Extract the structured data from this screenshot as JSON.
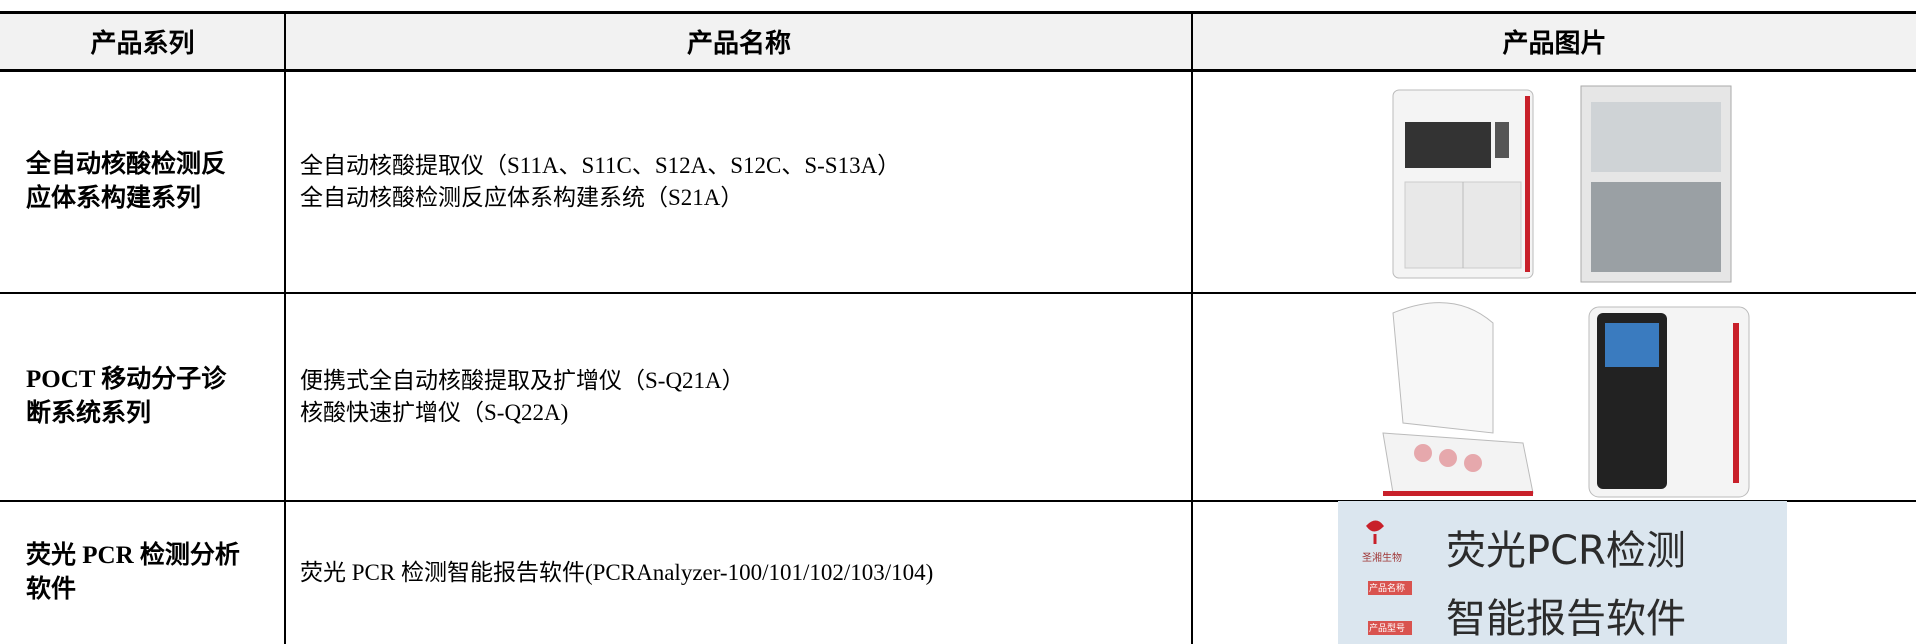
{
  "table": {
    "header": [
      "产品系列",
      "产品名称",
      "产品图片"
    ],
    "rows": [
      {
        "series": [
          "全自动核酸检测反",
          "应体系构建系列"
        ],
        "products": [
          "全自动核酸提取仪（S11A、S11C、S12A、S12C、S-S13A）",
          "全自动核酸检测反应体系构建系统（S21A）"
        ]
      },
      {
        "series": [
          "POCT 移动分子诊",
          "断系统系列"
        ],
        "products": [
          "便携式全自动核酸提取及扩增仪（S-Q21A）",
          "核酸快速扩增仪（S-Q22A)"
        ]
      },
      {
        "series": [
          "荧光 PCR 检测分析",
          "软件"
        ],
        "products": [
          "荧光 PCR 检测智能报告软件(PCRAnalyzer-100/101/102/103/104)"
        ],
        "image_text": {
          "brand": "圣湘生物",
          "title": [
            "荧光PCR检测",
            "智能报告软件"
          ],
          "tags": [
            "产品名称",
            "产品型号"
          ]
        }
      }
    ]
  }
}
